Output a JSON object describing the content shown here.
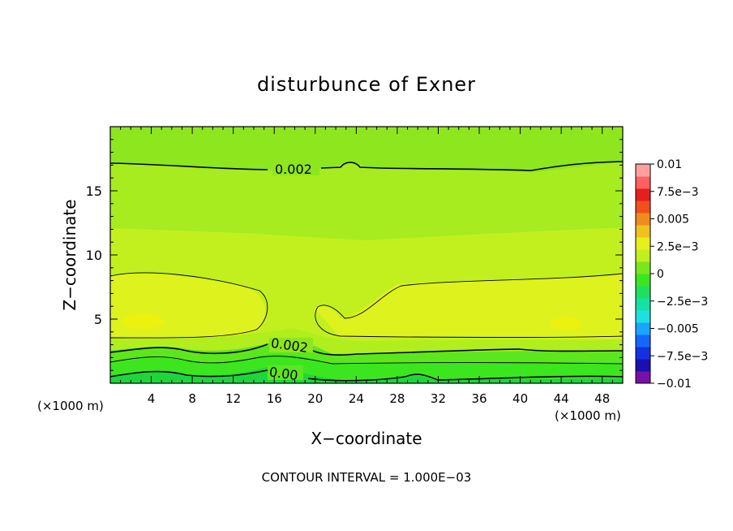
{
  "chart_data": {
    "type": "heatmap",
    "title": "disturbunce of Exner",
    "xlabel": "X−coordinate",
    "ylabel": "Z−coordinate",
    "x_unit_left": "(×1000 m)",
    "x_unit_right": "(×1000 m)",
    "footer": "CONTOUR INTERVAL = 1.000E−03",
    "xlim": [
      0,
      50
    ],
    "ylim": [
      0,
      20
    ],
    "xticks": [
      4,
      8,
      12,
      16,
      20,
      24,
      28,
      32,
      36,
      40,
      44,
      48
    ],
    "xtick_labels": [
      "4",
      "8",
      "12",
      "16",
      "20",
      "24",
      "28",
      "32",
      "36",
      "40",
      "44",
      "48"
    ],
    "yticks": [
      5,
      10,
      15
    ],
    "ytick_labels": [
      "5",
      "10",
      "15"
    ],
    "colorbar": {
      "min": -0.01,
      "max": 0.01,
      "labels": [
        {
          "value": 0.01,
          "text": "0.01"
        },
        {
          "value": 0.0075,
          "text": "7.5e−3"
        },
        {
          "value": 0.005,
          "text": "0.005"
        },
        {
          "value": 0.0025,
          "text": "2.5e−3"
        },
        {
          "value": 0,
          "text": "0"
        },
        {
          "value": -0.0025,
          "text": "−2.5e−3"
        },
        {
          "value": -0.005,
          "text": "−0.005"
        },
        {
          "value": -0.0075,
          "text": "−7.5e−3"
        },
        {
          "value": -0.01,
          "text": "−0.01"
        }
      ],
      "colors": [
        "#7a0fa8",
        "#1c0fb0",
        "#1530e0",
        "#1566ff",
        "#19a6ff",
        "#1ee0e0",
        "#15e0a8",
        "#1ee060",
        "#3ce61e",
        "#7ae61e",
        "#c2f01e",
        "#e6f01e",
        "#f0c21e",
        "#f08c1e",
        "#f0501e",
        "#e61e1e",
        "#ff6060",
        "#ffa0a0"
      ]
    },
    "contour_labels": [
      {
        "text": "0.002",
        "x": 20,
        "z": 16.8
      },
      {
        "text": "0.002",
        "x": 15.5,
        "z": 2.9
      },
      {
        "text": "0.00",
        "x": 15.5,
        "z": 0.7
      }
    ]
  }
}
